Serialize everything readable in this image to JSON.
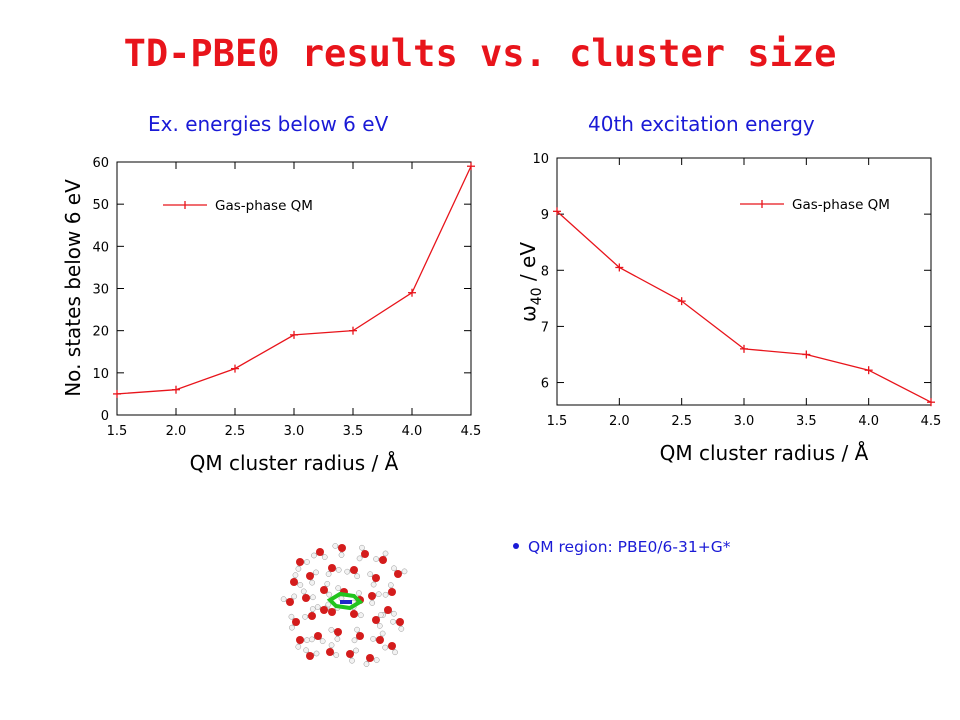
{
  "title": "TD-PBE0 results vs. cluster size",
  "panels": [
    {
      "subtitle": "Ex. energies below 6 eV"
    },
    {
      "subtitle": "40th excitation energy"
    }
  ],
  "bullet": "QM region: PBE0/6-31+G*",
  "colors": {
    "title": "#e8141b",
    "subtitle": "#1a1ad6",
    "series": "#e8141b",
    "axis": "#000000"
  },
  "chart_data": [
    {
      "type": "line",
      "title": "Ex. energies below 6 eV",
      "xlabel": "QM cluster radius / Å",
      "ylabel": "No. states below 6 eV",
      "xlim": [
        1.5,
        4.5
      ],
      "ylim": [
        0,
        60
      ],
      "xticks": [
        "1.5",
        "2.0",
        "2.5",
        "3.0",
        "3.5",
        "4.0",
        "4.5"
      ],
      "yticks": [
        "0",
        "10",
        "20",
        "30",
        "40",
        "50",
        "60"
      ],
      "legend_position": "top-left",
      "grid": false,
      "series": [
        {
          "name": "Gas-phase QM",
          "x": [
            1.5,
            2.0,
            2.5,
            3.0,
            3.5,
            4.0,
            4.5
          ],
          "y": [
            5,
            6,
            11,
            19,
            20,
            29,
            59
          ]
        }
      ]
    },
    {
      "type": "line",
      "title": "40th excitation energy",
      "xlabel": "QM cluster radius / Å",
      "ylabel_main": "ω",
      "ylabel_sub": "40",
      "ylabel_unit": " / eV",
      "xlim": [
        1.5,
        4.5
      ],
      "ylim": [
        5.6,
        10
      ],
      "xticks": [
        "1.5",
        "2.0",
        "2.5",
        "3.0",
        "3.5",
        "4.0",
        "4.5"
      ],
      "yticks": [
        "6",
        "7",
        "8",
        "9",
        "10"
      ],
      "legend_position": "top-right",
      "grid": false,
      "series": [
        {
          "name": "Gas-phase QM",
          "x": [
            1.5,
            2.0,
            2.5,
            3.0,
            3.5,
            4.0,
            4.5
          ],
          "y": [
            9.05,
            8.05,
            7.45,
            6.6,
            6.5,
            6.22,
            5.65
          ]
        }
      ]
    }
  ]
}
